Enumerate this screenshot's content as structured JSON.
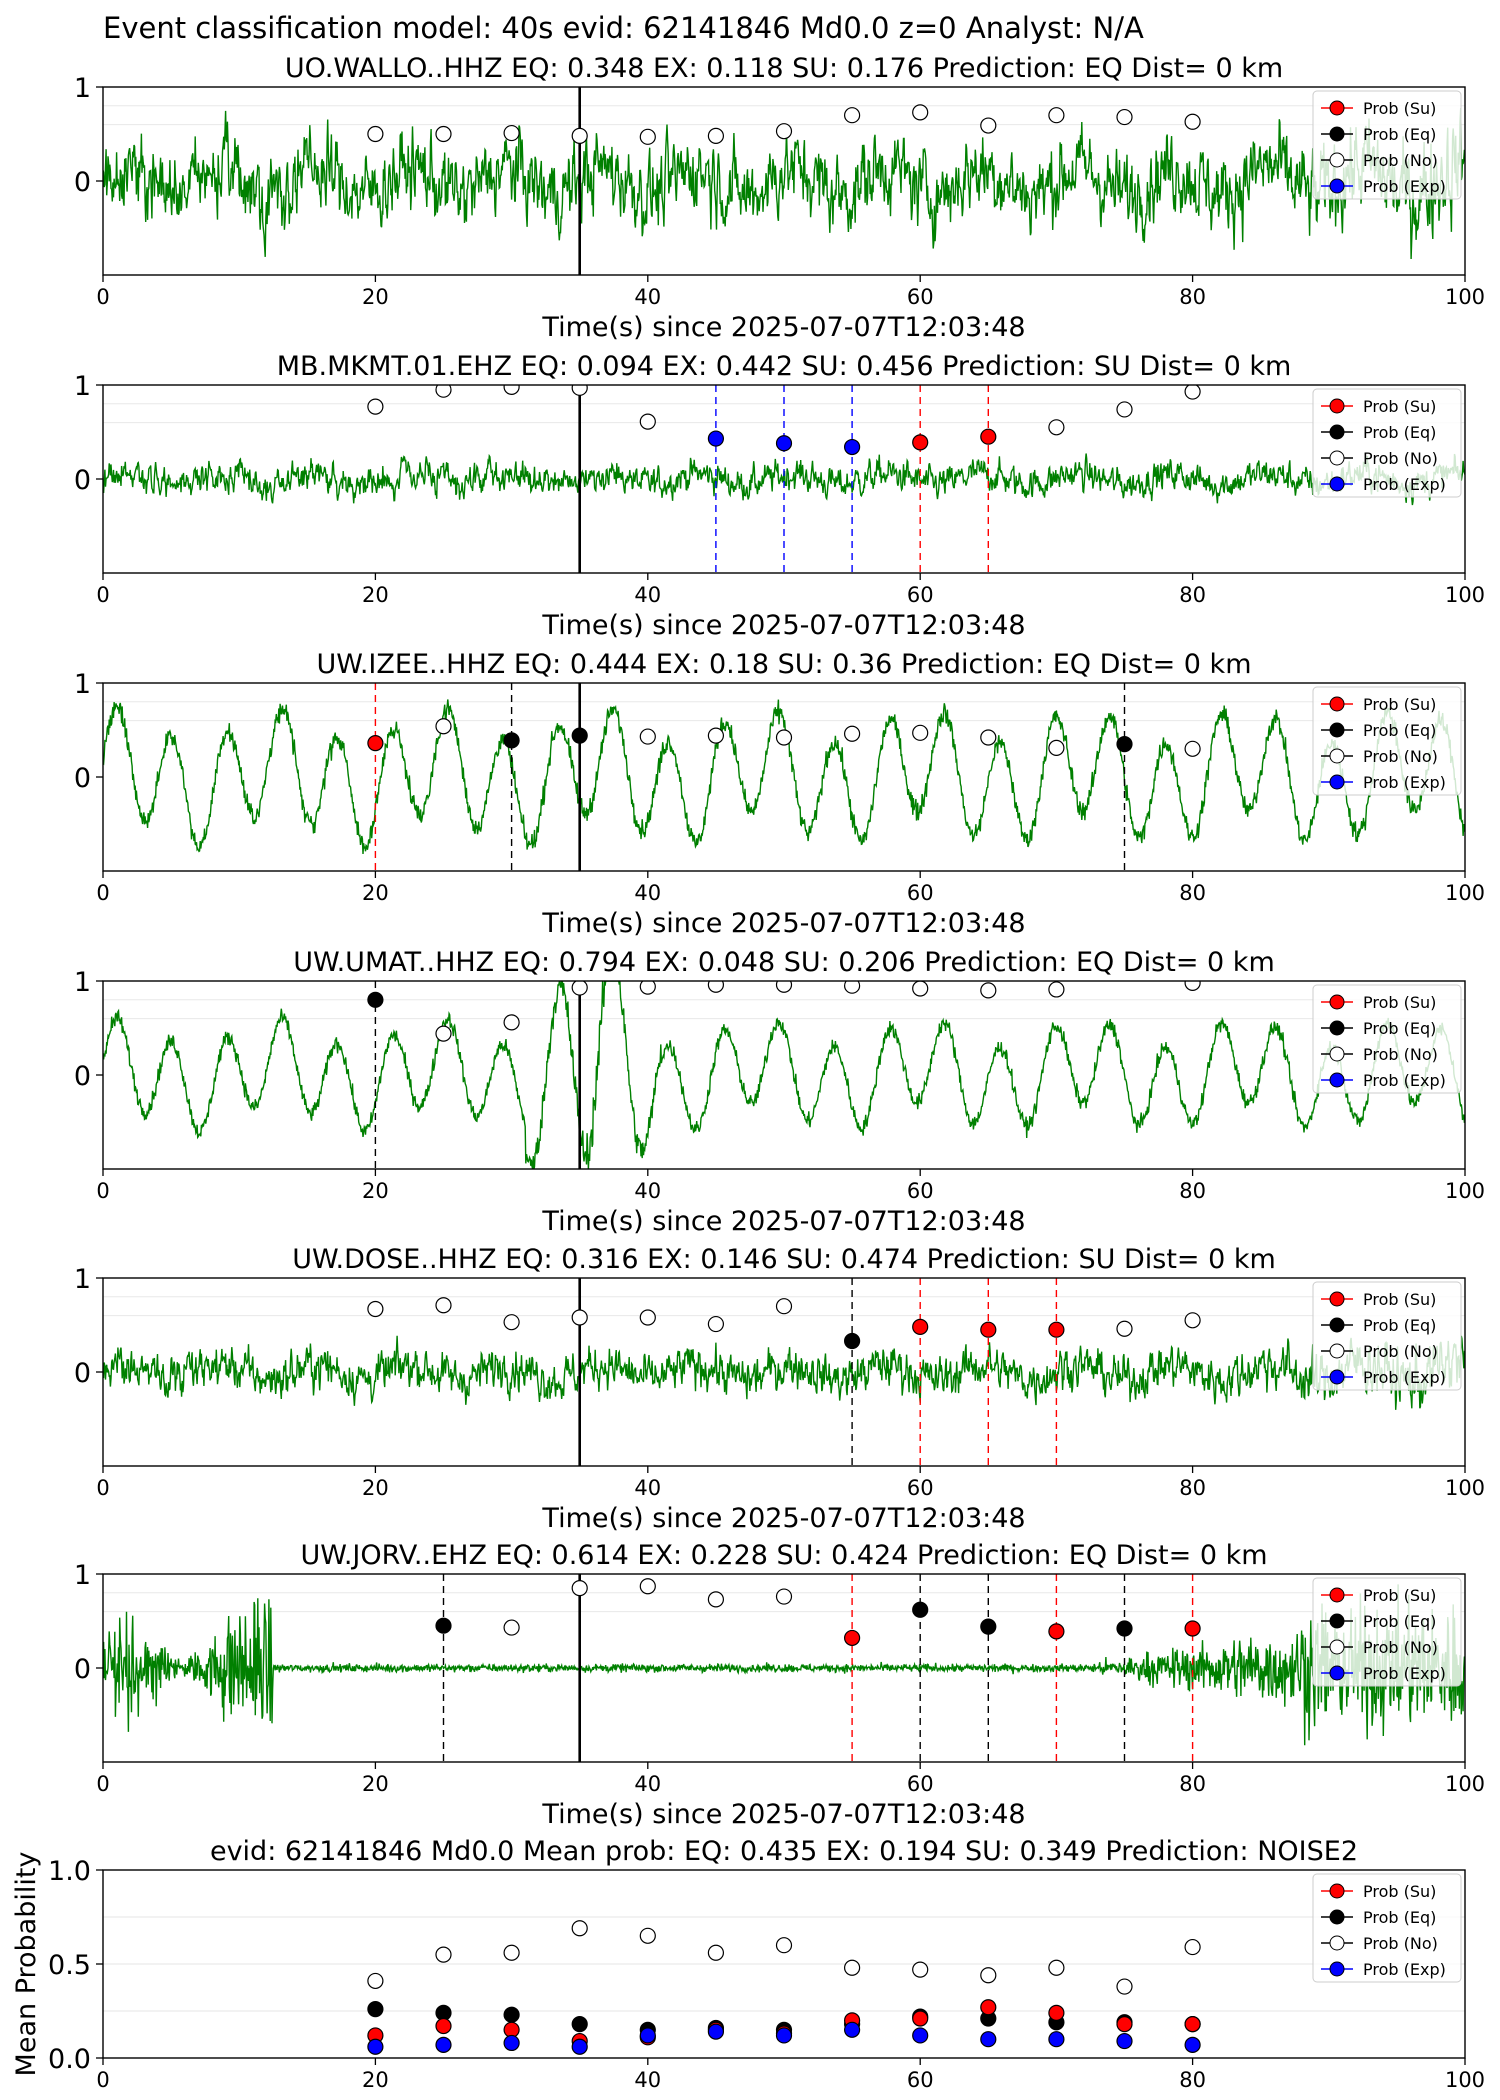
{
  "suptitle": "Event classification model: 40s evid: 62141846 Md0.0 z=0 Analyst: N/A",
  "legend": {
    "entries": [
      {
        "label": "Prob (Su)",
        "key": "su",
        "color": "#ff0000",
        "fill": "#ff0000"
      },
      {
        "label": "Prob (Eq)",
        "key": "eq",
        "color": "#000000",
        "fill": "#000000"
      },
      {
        "label": "Prob (No)",
        "key": "no",
        "color": "#000000",
        "fill": "#ffffff"
      },
      {
        "label": "Prob (Exp)",
        "key": "exp",
        "color": "#0000ff",
        "fill": "#0000ff"
      }
    ],
    "placement": "top-right"
  },
  "colors": {
    "waveform": "#008000",
    "origin_line": "#000000",
    "eq_line": "#000000",
    "su_line": "#ff0000",
    "exp_line": "#0000ff"
  },
  "chart_data": [
    {
      "type": "line",
      "title": "UO.WALLO..HHZ   EQ: 0.348   EX: 0.118   SU: 0.176   Prediction: EQ    Dist= 0 km",
      "xlabel": "Time(s) since 2025-07-07T12:03:48",
      "xlim": [
        0,
        100
      ],
      "ylim": [
        -1,
        1
      ],
      "xticks": [
        "0",
        "20",
        "40",
        "60",
        "80",
        "100"
      ],
      "yticks": [
        "0",
        "1"
      ],
      "origin_time": 35,
      "waveform": {
        "style": "noise",
        "amplitude": 0.55,
        "trend": 0.15
      },
      "noise_prob": {
        "x": [
          20,
          25,
          30,
          35,
          40,
          45,
          50,
          55,
          60,
          65,
          70,
          75,
          80
        ],
        "y": [
          0.5,
          0.5,
          0.51,
          0.48,
          0.47,
          0.48,
          0.53,
          0.7,
          0.73,
          0.59,
          0.7,
          0.68,
          0.63
        ]
      },
      "su_prob": {
        "x": [],
        "y": []
      },
      "eq_prob": {
        "x": [],
        "y": []
      },
      "exp_prob": {
        "x": [],
        "y": []
      },
      "grid": false
    },
    {
      "type": "line",
      "title": "MB.MKMT.01.EHZ   EQ: 0.094   EX: 0.442   SU: 0.456   Prediction: SU    Dist= 0 km",
      "xlabel": "Time(s) since 2025-07-07T12:03:48",
      "xlim": [
        0,
        100
      ],
      "ylim": [
        -1,
        1
      ],
      "xticks": [
        "0",
        "20",
        "40",
        "60",
        "80",
        "100"
      ],
      "yticks": [
        "0",
        "1"
      ],
      "origin_time": 35,
      "waveform": {
        "style": "noise",
        "amplitude": 0.22,
        "trend": 0.0
      },
      "noise_prob": {
        "x": [
          20,
          25,
          30,
          35,
          40,
          70,
          75,
          80
        ],
        "y": [
          0.77,
          0.95,
          0.98,
          0.97,
          0.61,
          0.55,
          0.74,
          0.93
        ]
      },
      "su_prob": {
        "x": [
          60,
          65
        ],
        "y": [
          0.39,
          0.45
        ]
      },
      "eq_prob": {
        "x": [],
        "y": []
      },
      "exp_prob": {
        "x": [
          45,
          50,
          55
        ],
        "y": [
          0.43,
          0.38,
          0.34
        ]
      },
      "grid": false
    },
    {
      "type": "line",
      "title": "UW.IZEE..HHZ   EQ: 0.444   EX: 0.18   SU: 0.36   Prediction: EQ    Dist= 0 km",
      "xlabel": "Time(s) since 2025-07-07T12:03:48",
      "xlim": [
        0,
        100
      ],
      "ylim": [
        -1,
        1
      ],
      "xticks": [
        "0",
        "20",
        "40",
        "60",
        "80",
        "100"
      ],
      "yticks": [
        "0",
        "1"
      ],
      "origin_time": 35,
      "waveform": {
        "style": "oscillation",
        "amplitude": 0.55,
        "trend": 0.0
      },
      "noise_prob": {
        "x": [
          25,
          40,
          45,
          50,
          55,
          60,
          65,
          70,
          80
        ],
        "y": [
          0.54,
          0.43,
          0.44,
          0.42,
          0.46,
          0.47,
          0.42,
          0.31,
          0.3
        ]
      },
      "su_prob": {
        "x": [
          20
        ],
        "y": [
          0.36
        ]
      },
      "eq_prob": {
        "x": [
          30,
          35,
          75
        ],
        "y": [
          0.39,
          0.44,
          0.35
        ]
      },
      "exp_prob": {
        "x": [],
        "y": []
      },
      "grid": false
    },
    {
      "type": "line",
      "title": "UW.UMAT..HHZ   EQ: 0.794   EX: 0.048   SU: 0.206   Prediction: EQ    Dist= 0 km",
      "xlabel": "Time(s) since 2025-07-07T12:03:48",
      "xlim": [
        0,
        100
      ],
      "ylim": [
        -1,
        1
      ],
      "xticks": [
        "0",
        "20",
        "40",
        "60",
        "80",
        "100"
      ],
      "yticks": [
        "0",
        "1"
      ],
      "origin_time": 35,
      "waveform": {
        "style": "oscillation",
        "amplitude": 0.45,
        "trend": 0.0,
        "burst_at": 35
      },
      "noise_prob": {
        "x": [
          25,
          30,
          35,
          40,
          45,
          50,
          55,
          60,
          65,
          70,
          80
        ],
        "y": [
          0.44,
          0.56,
          0.93,
          0.94,
          0.96,
          0.96,
          0.95,
          0.92,
          0.9,
          0.91,
          0.98
        ]
      },
      "su_prob": {
        "x": [],
        "y": []
      },
      "eq_prob": {
        "x": [
          20
        ],
        "y": [
          0.8
        ]
      },
      "exp_prob": {
        "x": [],
        "y": []
      },
      "grid": false
    },
    {
      "type": "line",
      "title": "UW.DOSE..HHZ   EQ: 0.316   EX: 0.146   SU: 0.474   Prediction: SU    Dist= 0 km",
      "xlabel": "Time(s) since 2025-07-07T12:03:48",
      "xlim": [
        0,
        100
      ],
      "ylim": [
        -1,
        1
      ],
      "xticks": [
        "0",
        "20",
        "40",
        "60",
        "80",
        "100"
      ],
      "yticks": [
        "0",
        "1"
      ],
      "origin_time": 35,
      "waveform": {
        "style": "noise",
        "amplitude": 0.3,
        "trend": 0.25
      },
      "noise_prob": {
        "x": [
          20,
          25,
          30,
          35,
          40,
          45,
          50,
          75,
          80
        ],
        "y": [
          0.67,
          0.71,
          0.53,
          0.58,
          0.58,
          0.51,
          0.7,
          0.46,
          0.55
        ]
      },
      "su_prob": {
        "x": [
          60,
          65,
          70
        ],
        "y": [
          0.48,
          0.45,
          0.45
        ]
      },
      "eq_prob": {
        "x": [
          55
        ],
        "y": [
          0.33
        ]
      },
      "exp_prob": {
        "x": [],
        "y": []
      },
      "grid": false
    },
    {
      "type": "line",
      "title": "UW.JORV..EHZ   EQ: 0.614   EX: 0.228   SU: 0.424   Prediction: EQ    Dist= 0 km",
      "xlabel": "Time(s) since 2025-07-07T12:03:48",
      "xlim": [
        0,
        100
      ],
      "ylim": [
        -1,
        1
      ],
      "xticks": [
        "0",
        "20",
        "40",
        "60",
        "80",
        "100"
      ],
      "yticks": [
        "0",
        "1"
      ],
      "origin_time": 35,
      "waveform": {
        "style": "quiet",
        "amplitude": 0.4,
        "trend": 0.0
      },
      "noise_prob": {
        "x": [
          30,
          35,
          40,
          45,
          50
        ],
        "y": [
          0.43,
          0.85,
          0.87,
          0.73,
          0.76
        ]
      },
      "su_prob": {
        "x": [
          55,
          70,
          80
        ],
        "y": [
          0.32,
          0.39,
          0.42
        ]
      },
      "eq_prob": {
        "x": [
          25,
          60,
          65,
          75
        ],
        "y": [
          0.45,
          0.62,
          0.44,
          0.42
        ]
      },
      "exp_prob": {
        "x": [],
        "y": []
      },
      "grid": false
    },
    {
      "type": "scatter",
      "title": "evid: 62141846  Md0.0   Mean prob:   EQ: 0.435  EX: 0.194  SU: 0.349   Prediction: NOISE2",
      "ylabel": "Mean Probability",
      "xlim": [
        0,
        100
      ],
      "ylim": [
        0,
        1
      ],
      "xticks": [
        "0",
        "20",
        "40",
        "60",
        "80",
        "100"
      ],
      "yticks": [
        "0.0",
        "0.5",
        "1.0"
      ],
      "noise_prob": {
        "x": [
          20,
          25,
          30,
          35,
          40,
          45,
          50,
          55,
          60,
          65,
          70,
          75,
          80
        ],
        "y": [
          0.41,
          0.55,
          0.56,
          0.69,
          0.65,
          0.56,
          0.6,
          0.48,
          0.47,
          0.44,
          0.48,
          0.38,
          0.59
        ]
      },
      "eq_prob": {
        "x": [
          20,
          25,
          30,
          35,
          40,
          45,
          50,
          55,
          60,
          65,
          70,
          75,
          80
        ],
        "y": [
          0.26,
          0.24,
          0.23,
          0.18,
          0.15,
          0.16,
          0.15,
          0.18,
          0.22,
          0.21,
          0.19,
          0.19,
          0.18
        ]
      },
      "su_prob": {
        "x": [
          20,
          25,
          30,
          35,
          40,
          45,
          50,
          55,
          60,
          65,
          70,
          75,
          80
        ],
        "y": [
          0.12,
          0.17,
          0.15,
          0.09,
          0.11,
          0.15,
          0.13,
          0.2,
          0.21,
          0.27,
          0.24,
          0.18,
          0.18
        ]
      },
      "exp_prob": {
        "x": [
          20,
          25,
          30,
          35,
          40,
          45,
          50,
          55,
          60,
          65,
          70,
          75,
          80
        ],
        "y": [
          0.06,
          0.07,
          0.08,
          0.06,
          0.12,
          0.14,
          0.12,
          0.15,
          0.12,
          0.1,
          0.1,
          0.09,
          0.07
        ]
      },
      "grid": true
    }
  ]
}
